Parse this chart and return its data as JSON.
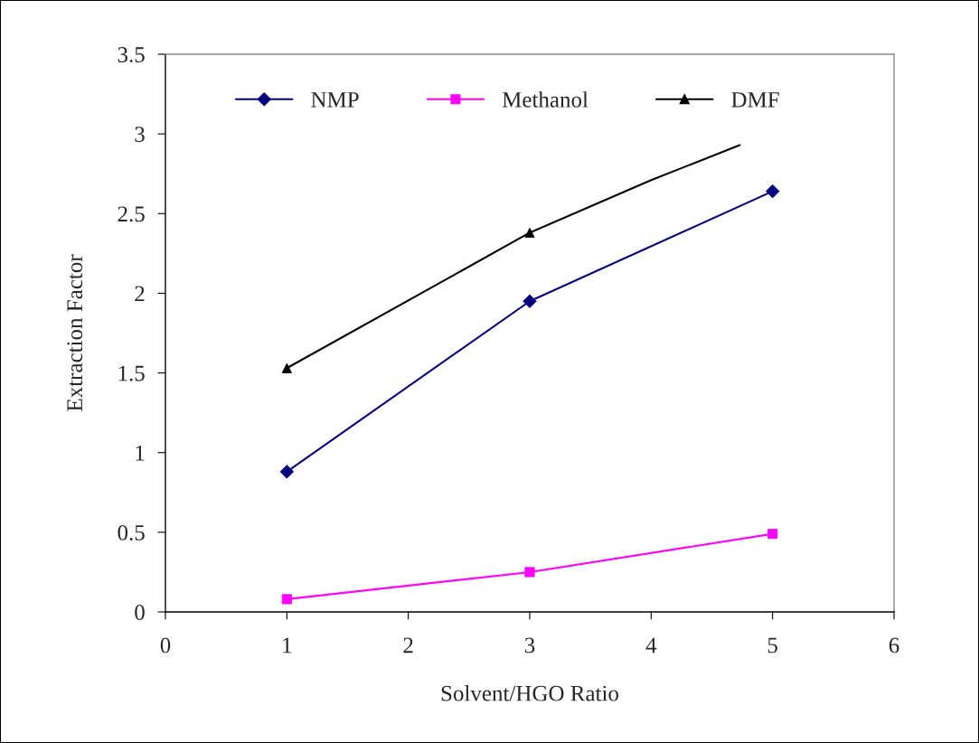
{
  "chart_data": {
    "type": "line",
    "xlabel": "Solvent/HGO Ratio",
    "ylabel": "Extraction Factor",
    "x": [
      1,
      3,
      5
    ],
    "series": [
      {
        "name": "NMP",
        "color": "#000080",
        "values": [
          0.88,
          1.95,
          2.64
        ],
        "marker": "diamond"
      },
      {
        "name": "Methanol",
        "color": "#ff00ff",
        "values": [
          0.08,
          0.25,
          0.49
        ],
        "marker": "square"
      },
      {
        "name": "DMF",
        "color": "#000000",
        "values": [
          1.53,
          2.38,
          null
        ],
        "marker": "triangle"
      },
      {
        "color": "#000000",
        "x": [
          3,
          4,
          4.73
        ],
        "values": [
          2.38,
          2.71,
          2.93
        ],
        "marker": "none"
      }
    ],
    "xlim": [
      0,
      6
    ],
    "xticks": [
      0,
      1,
      2,
      3,
      4,
      5,
      6
    ],
    "ylim": [
      0,
      3.5
    ],
    "yticks": [
      0,
      0.5,
      1,
      1.5,
      2,
      2.5,
      3,
      3.5
    ],
    "grid": false,
    "legend": "top"
  }
}
